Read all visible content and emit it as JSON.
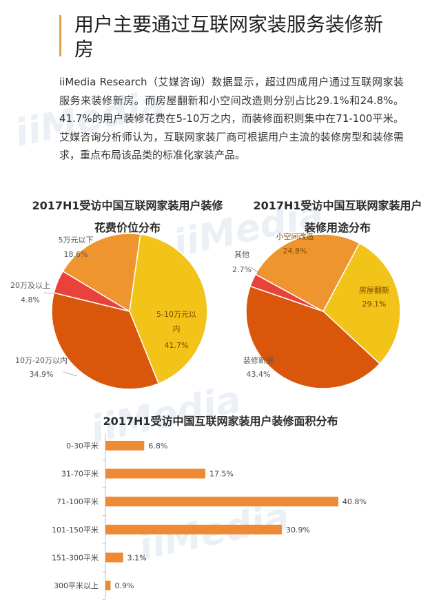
{
  "header": {
    "title": "用户主要通过互联网家装服务装修新房"
  },
  "intro_text": "iiMedia Research（艾媒咨询）数据显示，超过四成用户通过互联网家装服务来装修新房。而房屋翻新和小空间改造则分别占比29.1%和24.8%。41.7%的用户装修花费在5-10万之内，而装修面积则集中在71-100平米。艾媒咨询分析师认为，互联网家装厂商可根据用户主流的装修房型和装修需求，重点布局该品类的标准化家装产品。",
  "watermark": "iiMedia",
  "colors": {
    "yellow": "#F2C318",
    "light_orange": "#EE9530",
    "dark_orange": "#D9560B",
    "red": "#E8423A",
    "bar": "#EE8A33"
  },
  "chart_data": [
    {
      "type": "pie",
      "title_line1": "2017H1受访中国互联网家装用户装修",
      "title_line2": "花费价位分布",
      "slices": [
        {
          "label": "5-10万元以内",
          "value": 41.7,
          "value_text": "41.7%",
          "color": "#F2C318"
        },
        {
          "label": "10万-20万以内",
          "value": 34.9,
          "value_text": "34.9%",
          "color": "#D9560B"
        },
        {
          "label": "20万及以上",
          "value": 4.8,
          "value_text": "4.8%",
          "color": "#E8423A"
        },
        {
          "label": "5万元以下",
          "value": 18.6,
          "value_text": "18.6%",
          "color": "#EE9530"
        }
      ]
    },
    {
      "type": "pie",
      "title_line1": "2017H1受访中国互联网家装用户",
      "title_line2": "装修用途分布",
      "slices": [
        {
          "label": "房屋翻新",
          "value": 29.1,
          "value_text": "29.1%",
          "color": "#F2C318"
        },
        {
          "label": "装修新房",
          "value": 43.4,
          "value_text": "43.4%",
          "color": "#D9560B"
        },
        {
          "label": "其他",
          "value": 2.7,
          "value_text": "2.7%",
          "color": "#E8423A"
        },
        {
          "label": "小空间改造",
          "value": 24.8,
          "value_text": "24.8%",
          "color": "#EE9530"
        }
      ]
    },
    {
      "type": "bar",
      "orientation": "horizontal",
      "title": "2017H1受访中国互联网家装用户装修面积分布",
      "categories": [
        "0-30平米",
        "31-70平米",
        "71-100平米",
        "101-150平米",
        "151-300平米",
        "300平米以上"
      ],
      "values": [
        6.8,
        17.5,
        40.8,
        30.9,
        3.1,
        0.9
      ],
      "value_labels": [
        "6.8%",
        "17.5%",
        "40.8%",
        "30.9%",
        "3.1%",
        "0.9%"
      ],
      "xlim": [
        0,
        40.8
      ]
    }
  ]
}
